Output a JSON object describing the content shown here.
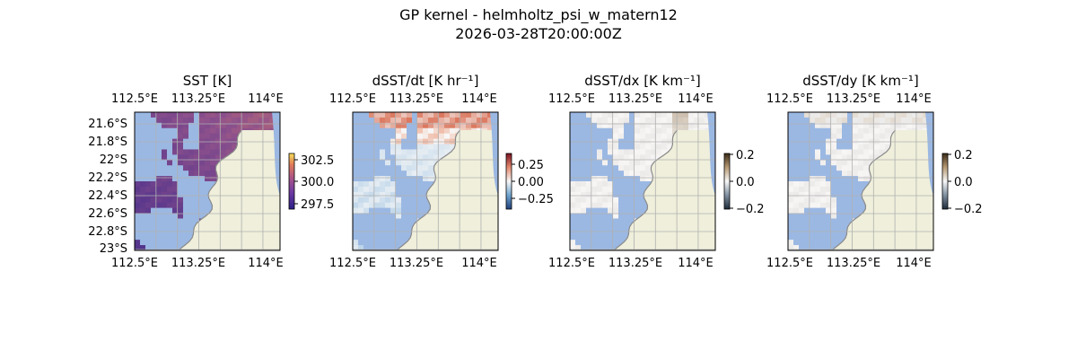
{
  "figure": {
    "title_line1": "GP kernel - helmholtz_psi_w_matern12",
    "title_line2": "2026-03-28T20:00:00Z"
  },
  "colors": {
    "land": "#efefdb",
    "masked_water": "#9bb8e3",
    "coastline": "#8a8a8a",
    "gridline": "#b0b0b0"
  },
  "chart_data": [
    {
      "type": "heatmap",
      "title": "SST [K]",
      "colormap": "plasma-like (muted)",
      "x_ticks": [
        "112.5°E",
        "113.25°E",
        "114°E"
      ],
      "y_ticks": [
        "21.6°S",
        "21.8°S",
        "22°S",
        "22.2°S",
        "22.4°S",
        "22.6°S",
        "22.8°S",
        "23°S"
      ],
      "colorbar_ticks": [
        "302.5",
        "300.0",
        "297.5"
      ],
      "colorbar_range": [
        296.9,
        303.5
      ],
      "value_range_shown": [
        297.5,
        302.5
      ],
      "grid": true
    },
    {
      "type": "heatmap",
      "title": "dSST/dt [K hr⁻¹]",
      "colormap": "RdBu_r",
      "x_ticks": [
        "112.5°E",
        "113.25°E",
        "114°E"
      ],
      "y_ticks": [],
      "colorbar_ticks": [
        "0.25",
        "0.00",
        "−0.25"
      ],
      "colorbar_range": [
        -0.4,
        0.4
      ],
      "grid": true
    },
    {
      "type": "heatmap",
      "title": "dSST/dx [K km⁻¹]",
      "colormap": "diverging dark-white-brown",
      "x_ticks": [
        "112.5°E",
        "113.25°E",
        "114°E"
      ],
      "y_ticks": [],
      "colorbar_ticks": [
        "0.2",
        "0.0",
        "−0.2"
      ],
      "colorbar_range": [
        -0.2,
        0.2
      ],
      "grid": true
    },
    {
      "type": "heatmap",
      "title": "dSST/dy [K km⁻¹]",
      "colormap": "diverging dark-white-brown",
      "x_ticks": [
        "112.5°E",
        "113.25°E",
        "114°E"
      ],
      "y_ticks": [],
      "colorbar_ticks": [
        "0.2",
        "0.0",
        "−0.2"
      ],
      "colorbar_range": [
        -0.2,
        0.2
      ],
      "grid": true
    }
  ]
}
